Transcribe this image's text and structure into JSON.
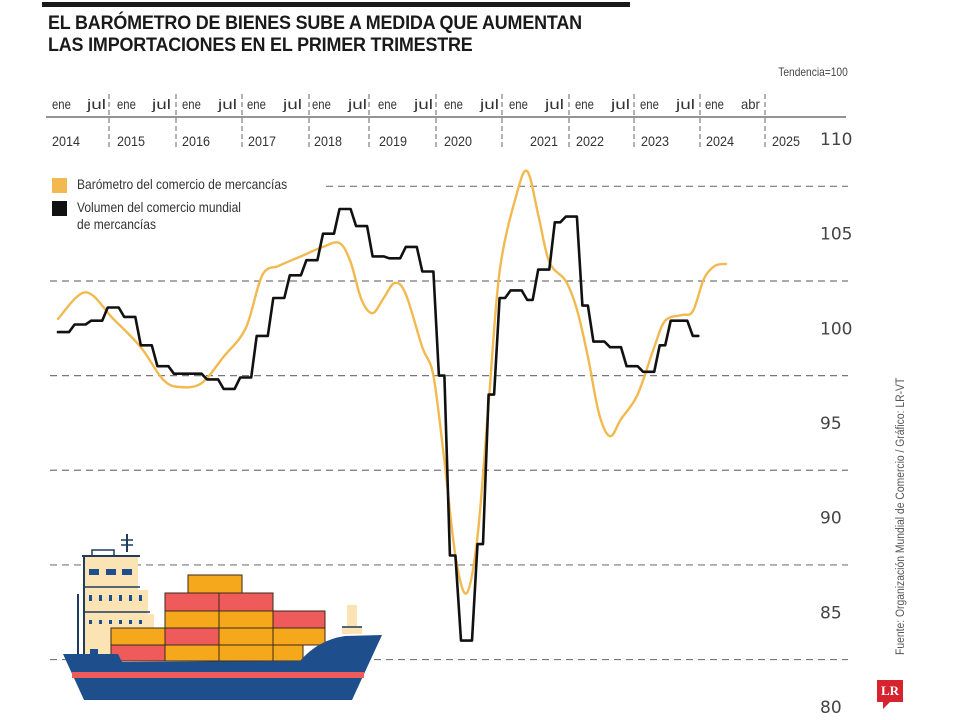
{
  "header": {
    "title_line1": "EL BARÓMETRO DE BIENES SUBE A MEDIDA QUE AUMENTAN",
    "title_line2": "LAS IMPORTACIONES EN EL PRIMER TRIMESTRE",
    "note": "Tendencia=100"
  },
  "legend": [
    {
      "label": "Barómetro del comercio de mercancías",
      "color": "#f2b950"
    },
    {
      "label": "Volumen del comercio mundial\nde mercancías",
      "color": "#111111"
    }
  ],
  "credit": "Fuente: Organización Mundial de Comercio  / Gráfico: LR-VT",
  "logo": "LR",
  "chart_data": {
    "type": "line",
    "title": "EL BARÓMETRO DE BIENES SUBE A MEDIDA QUE AUMENTAN LAS IMPORTACIONES EN EL PRIMER TRIMESTRE",
    "xlabel": "",
    "ylabel": "Tendencia=100",
    "x_unit": "months since ene 2014",
    "month_ticks": [
      {
        "m": 0,
        "label": "ene"
      },
      {
        "m": 6,
        "label": "jul"
      },
      {
        "m": 12,
        "label": "ene"
      },
      {
        "m": 18,
        "label": "jul"
      },
      {
        "m": 24,
        "label": "ene"
      },
      {
        "m": 30,
        "label": "jul"
      },
      {
        "m": 36,
        "label": "ene"
      },
      {
        "m": 42,
        "label": "jul"
      },
      {
        "m": 48,
        "label": "ene"
      },
      {
        "m": 54,
        "label": "jul"
      },
      {
        "m": 60,
        "label": "ene"
      },
      {
        "m": 66,
        "label": "jul"
      },
      {
        "m": 72,
        "label": "ene"
      },
      {
        "m": 78,
        "label": "jul"
      },
      {
        "m": 84,
        "label": "ene"
      },
      {
        "m": 90,
        "label": "jul"
      },
      {
        "m": 96,
        "label": "ene"
      },
      {
        "m": 102,
        "label": "jul"
      },
      {
        "m": 108,
        "label": "ene"
      },
      {
        "m": 114,
        "label": "jul"
      },
      {
        "m": 120,
        "label": "ene"
      },
      {
        "m": 123,
        "label": "abr"
      }
    ],
    "year_ticks": [
      {
        "m": 0,
        "label": "2014"
      },
      {
        "m": 12,
        "label": "2015"
      },
      {
        "m": 24,
        "label": "2016"
      },
      {
        "m": 36,
        "label": "2017"
      },
      {
        "m": 48,
        "label": "2018"
      },
      {
        "m": 60,
        "label": "2019"
      },
      {
        "m": 72,
        "label": "2020"
      },
      {
        "m": 90,
        "label": "2021"
      },
      {
        "m": 96,
        "label": "2022"
      },
      {
        "m": 108,
        "label": "2023"
      },
      {
        "m": 120,
        "label": "2024"
      },
      {
        "m": 132,
        "label": "2025"
      }
    ],
    "y_ticks": [
      110,
      105,
      100,
      95,
      90,
      85,
      80
    ],
    "gridlines": [
      107.5,
      102.5,
      97.5,
      92.5,
      87.5,
      82.5
    ],
    "ylim": [
      80,
      110
    ],
    "grid": true,
    "legend_position": "top-left",
    "series": [
      {
        "name": "Barómetro del comercio de mercancías",
        "color": "#f2b950",
        "smooth": true,
        "points": [
          [
            0,
            100.5
          ],
          [
            5,
            101.9
          ],
          [
            10,
            100.5
          ],
          [
            15,
            99.0
          ],
          [
            19,
            97.3
          ],
          [
            22,
            96.9
          ],
          [
            26,
            97.1
          ],
          [
            30,
            98.5
          ],
          [
            34,
            100.0
          ],
          [
            37,
            102.8
          ],
          [
            40,
            103.3
          ],
          [
            44,
            103.8
          ],
          [
            48,
            104.3
          ],
          [
            51,
            104.5
          ],
          [
            53,
            103.5
          ],
          [
            55,
            101.5
          ],
          [
            57,
            100.8
          ],
          [
            59,
            101.6
          ],
          [
            61,
            102.4
          ],
          [
            63,
            101.8
          ],
          [
            66,
            99.0
          ],
          [
            68,
            97.5
          ],
          [
            70,
            93.0
          ],
          [
            72,
            88.0
          ],
          [
            74,
            86.0
          ],
          [
            76,
            89.0
          ],
          [
            78,
            96.0
          ],
          [
            80,
            103.0
          ],
          [
            83,
            107.0
          ],
          [
            85,
            108.3
          ],
          [
            87,
            106.0
          ],
          [
            89,
            103.5
          ],
          [
            92,
            102.5
          ],
          [
            94,
            101.0
          ],
          [
            96,
            98.5
          ],
          [
            98,
            95.5
          ],
          [
            100,
            94.3
          ],
          [
            102,
            95.2
          ],
          [
            105,
            96.5
          ],
          [
            108,
            99.0
          ],
          [
            110,
            100.4
          ],
          [
            113,
            100.7
          ],
          [
            115,
            100.9
          ],
          [
            117,
            102.6
          ],
          [
            119,
            103.3
          ],
          [
            121,
            103.4
          ]
        ]
      },
      {
        "name": "Volumen del comercio mundial de mercancías",
        "color": "#111111",
        "smooth": false,
        "points": [
          [
            0,
            99.8
          ],
          [
            2,
            99.8
          ],
          [
            3,
            100.2
          ],
          [
            5,
            100.2
          ],
          [
            6,
            100.4
          ],
          [
            8,
            100.4
          ],
          [
            9,
            101.1
          ],
          [
            11,
            101.1
          ],
          [
            12,
            100.6
          ],
          [
            14,
            100.6
          ],
          [
            15,
            99.1
          ],
          [
            17,
            99.1
          ],
          [
            18,
            98.0
          ],
          [
            20,
            98.0
          ],
          [
            21,
            97.6
          ],
          [
            23,
            97.6
          ],
          [
            26,
            97.6
          ],
          [
            27,
            97.3
          ],
          [
            29,
            97.3
          ],
          [
            30,
            96.8
          ],
          [
            32,
            96.8
          ],
          [
            33,
            97.4
          ],
          [
            35,
            97.4
          ],
          [
            36,
            99.6
          ],
          [
            38,
            99.6
          ],
          [
            39,
            101.6
          ],
          [
            41,
            101.6
          ],
          [
            42,
            102.8
          ],
          [
            44,
            102.8
          ],
          [
            45,
            103.6
          ],
          [
            47,
            103.6
          ],
          [
            48,
            105.0
          ],
          [
            50,
            105.0
          ],
          [
            51,
            106.3
          ],
          [
            53,
            106.3
          ],
          [
            54,
            105.4
          ],
          [
            56,
            105.4
          ],
          [
            57,
            103.8
          ],
          [
            59,
            103.8
          ],
          [
            60,
            103.7
          ],
          [
            62,
            103.7
          ],
          [
            63,
            104.3
          ],
          [
            65,
            104.3
          ],
          [
            66,
            103.0
          ],
          [
            68,
            103.0
          ],
          [
            69,
            97.5
          ],
          [
            70,
            97.5
          ],
          [
            71,
            88.0
          ],
          [
            72,
            88.0
          ],
          [
            73,
            83.5
          ],
          [
            75,
            83.5
          ],
          [
            76,
            88.6
          ],
          [
            77,
            88.6
          ],
          [
            78,
            96.5
          ],
          [
            79,
            96.5
          ],
          [
            80,
            101.6
          ],
          [
            81,
            101.6
          ],
          [
            82,
            102.0
          ],
          [
            84,
            102.0
          ],
          [
            85,
            101.5
          ],
          [
            86,
            101.5
          ],
          [
            87,
            103.1
          ],
          [
            89,
            103.1
          ],
          [
            90,
            105.6
          ],
          [
            91,
            105.6
          ],
          [
            92,
            105.9
          ],
          [
            94,
            105.9
          ],
          [
            95,
            101.2
          ],
          [
            96,
            101.2
          ],
          [
            97,
            99.3
          ],
          [
            99,
            99.3
          ],
          [
            100,
            99.0
          ],
          [
            102,
            99.0
          ],
          [
            103,
            98.0
          ],
          [
            105,
            98.0
          ],
          [
            106,
            97.7
          ],
          [
            108,
            97.7
          ],
          [
            109,
            99.1
          ],
          [
            110,
            99.1
          ],
          [
            111,
            100.4
          ],
          [
            114,
            100.4
          ],
          [
            115,
            99.6
          ],
          [
            116,
            99.6
          ]
        ]
      }
    ]
  },
  "illustration": {
    "name": "container-ship",
    "hull_color": "#1f4e8c",
    "stripe_color": "#ef5a5a",
    "container_colors": [
      "#f5a81c",
      "#ef5a5a"
    ],
    "cabin_color": "#fbe3b4"
  }
}
